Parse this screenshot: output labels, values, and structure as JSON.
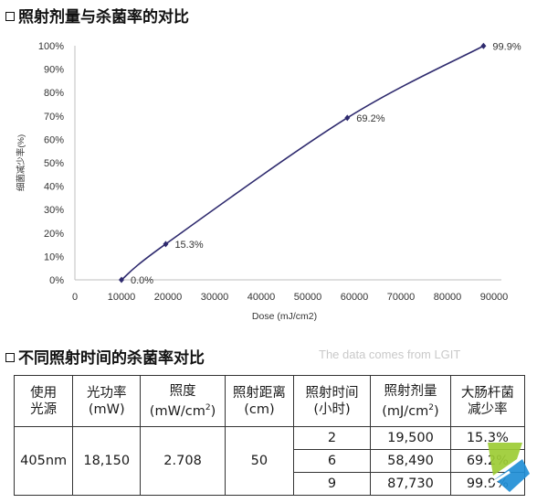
{
  "headings": {
    "chart": "照射剂量与杀菌率的对比",
    "table": "不同照射时间的杀菌率对比",
    "source_note": "The data comes from LGIT"
  },
  "chart_data": {
    "type": "line",
    "xlabel": "Dose (mJ/cm2)",
    "ylabel": "细菌减少率(%)",
    "xlim": [
      0,
      90000
    ],
    "ylim": [
      0,
      100
    ],
    "x_ticks": [
      0,
      10000,
      20000,
      30000,
      40000,
      50000,
      60000,
      70000,
      80000,
      90000
    ],
    "x_tick_labels": [
      "0",
      "10000",
      "20000",
      "30000",
      "40000",
      "50000",
      "60000",
      "70000",
      "80000",
      "90000"
    ],
    "y_ticks": [
      0,
      10,
      20,
      30,
      40,
      50,
      60,
      70,
      80,
      90,
      100
    ],
    "y_tick_labels": [
      "0%",
      "10%",
      "20%",
      "30%",
      "40%",
      "50%",
      "60%",
      "70%",
      "80%",
      "90%",
      "100%"
    ],
    "grid": false,
    "line_color": "#2e2a6e",
    "points": [
      {
        "x": 10000,
        "y": 0.0,
        "label": "0.0%"
      },
      {
        "x": 19500,
        "y": 15.3,
        "label": "15.3%"
      },
      {
        "x": 58490,
        "y": 69.2,
        "label": "69.2%"
      },
      {
        "x": 87730,
        "y": 99.9,
        "label": "99.9%"
      }
    ]
  },
  "table": {
    "headers": [
      "使用\n光源",
      "光功率\n(mW)",
      "照度\n(mW/cm²)",
      "照射距离\n(cm)",
      "照射时间\n(小时)",
      "照射剂量\n(mJ/cm²)",
      "大肠杆菌\n减少率"
    ],
    "light_source": "405nm",
    "power": "18,150",
    "irradiance": "2.708",
    "distance": "50",
    "rows": [
      {
        "time": "2",
        "dose": "19,500",
        "reduction": "15.3%"
      },
      {
        "time": "6",
        "dose": "58,490",
        "reduction": "69.2%"
      },
      {
        "time": "9",
        "dose": "87,730",
        "reduction": "99.9%"
      }
    ]
  },
  "colors": {
    "line": "#2e2a6e",
    "logo_green": "#9ccc34",
    "logo_blue": "#1f8ed6"
  }
}
